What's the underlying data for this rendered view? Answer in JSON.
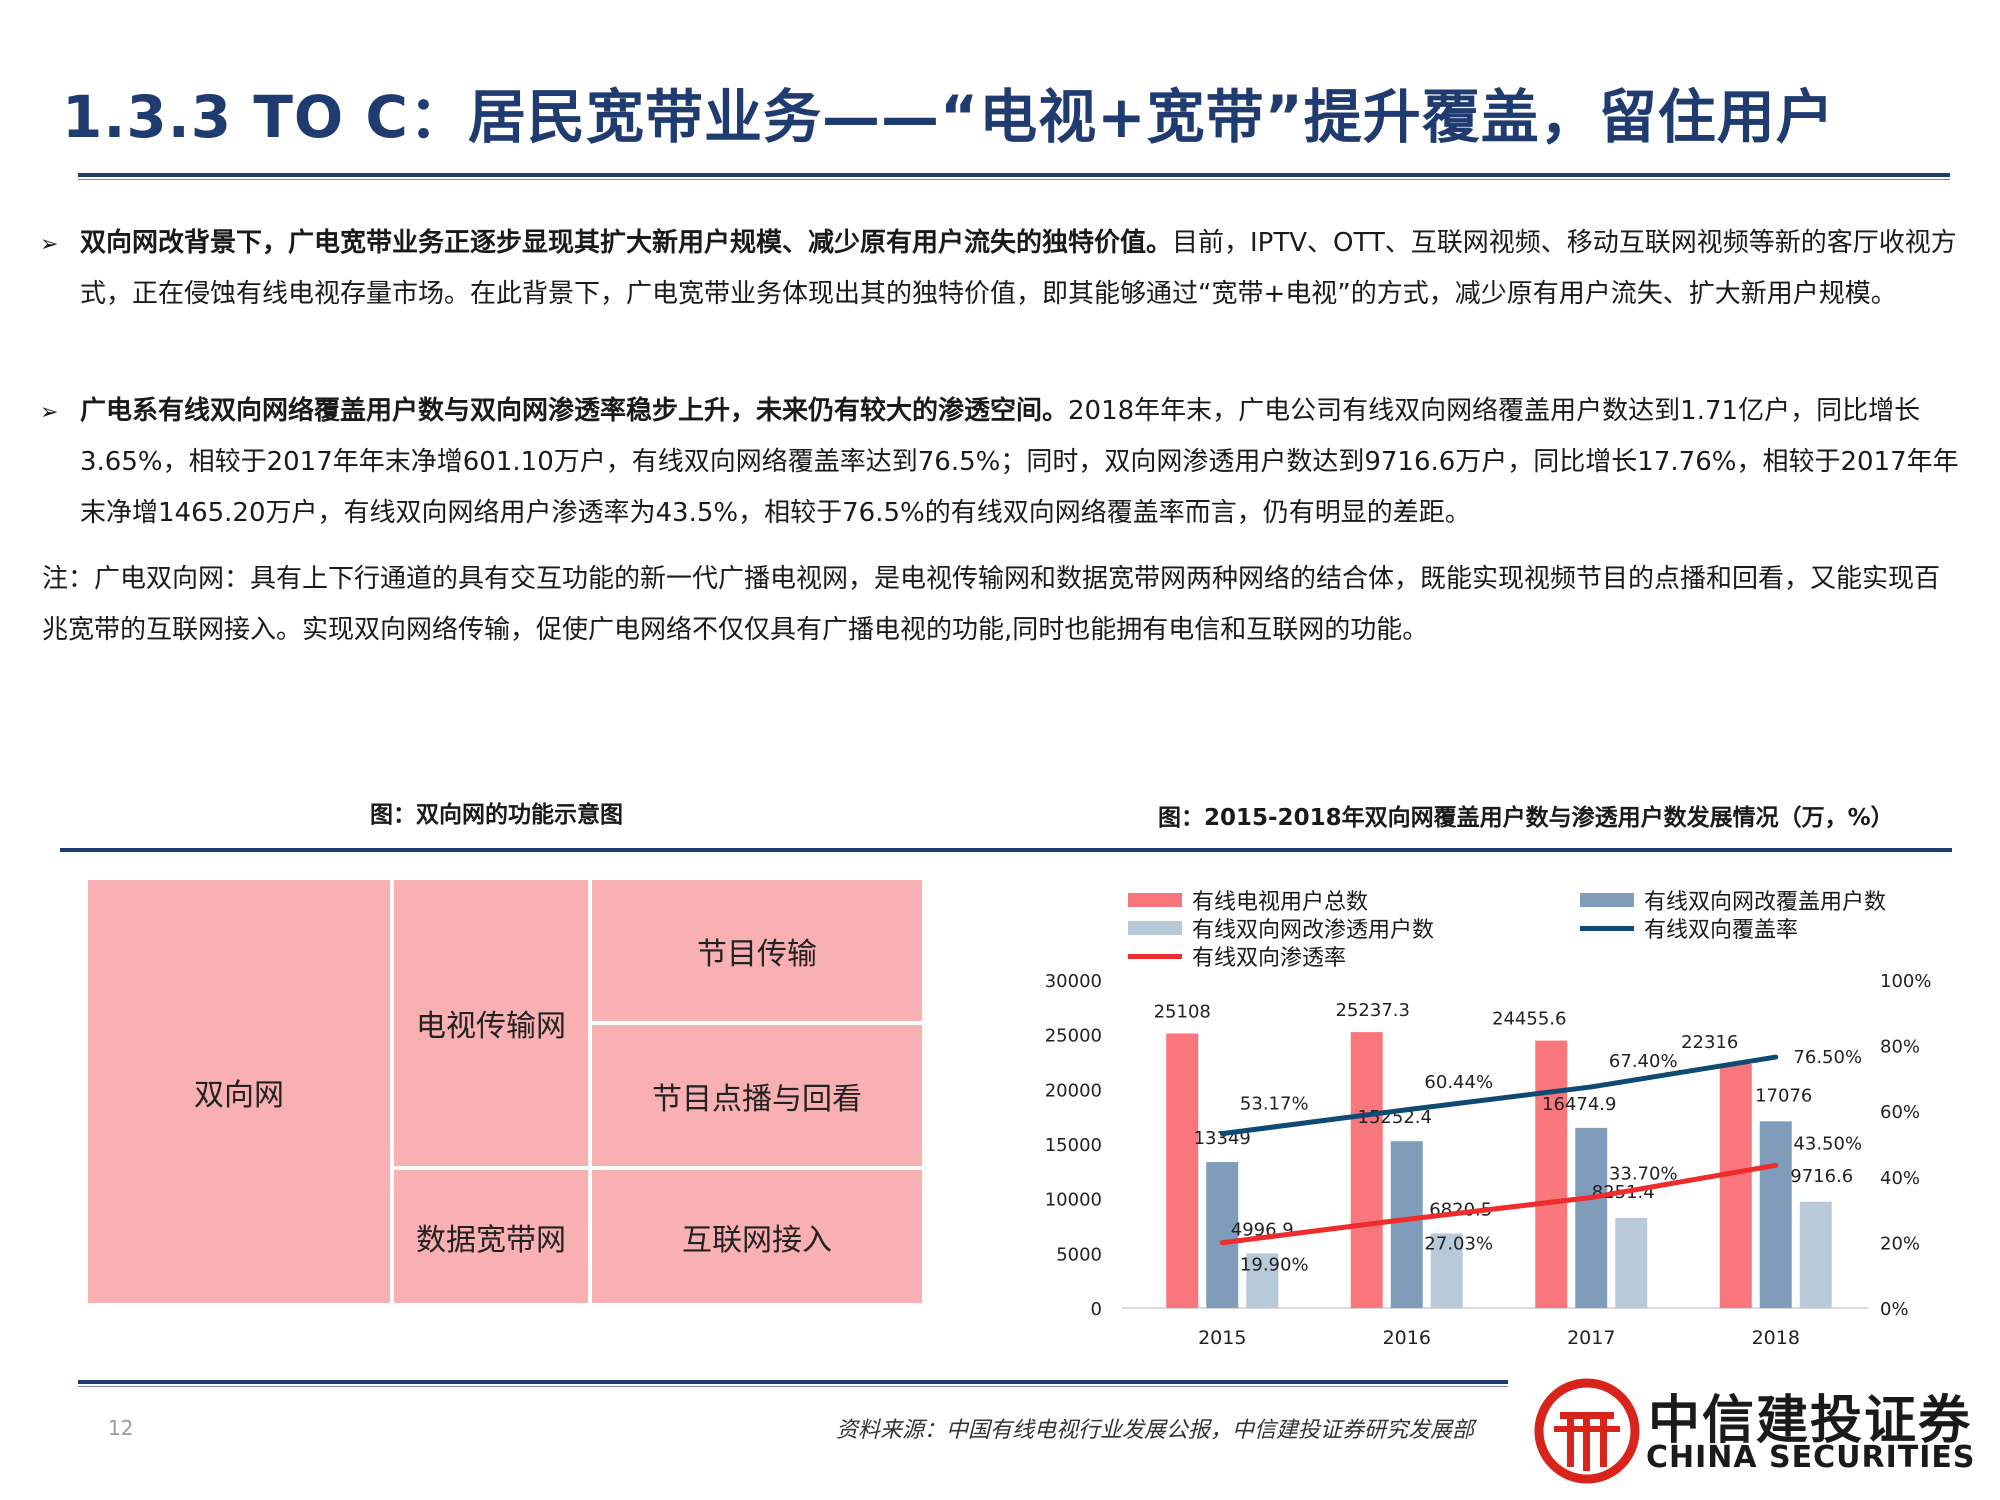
{
  "header": {
    "title": "1.3.3 TO C：居民宽带业务——“电视+宽带”提升覆盖，留住用户"
  },
  "bullets": [
    {
      "marker": "➢",
      "lead": "双向网改背景下，广电宽带业务正逐步显现其扩大新用户规模、减少原有用户流失的独特价值。",
      "body": "目前，IPTV、OTT、互联网视频、移动互联网视频等新的客厅收视方式，正在侵蚀有线电视存量市场。在此背景下，广电宽带业务体现出其的独特价值，即其能够通过“宽带+电视”的方式，减少原有用户流失、扩大新用户规模。"
    },
    {
      "marker": "➢",
      "lead": "广电系有线双向网络覆盖用户数与双向网渗透率稳步上升，未来仍有较大的渗透空间。",
      "body": "2018年年末，广电公司有线双向网络覆盖用户数达到1.71亿户，同比增长3.65%，相较于2017年年末净增601.10万户，有线双向网络覆盖率达到76.5%；同时，双向网渗透用户数达到9716.6万户，同比增长17.76%，相较于2017年年末净增1465.20万户，有线双向网络用户渗透率为43.5%，相较于76.5%的有线双向网络覆盖率而言，仍有明显的差距。"
    }
  ],
  "note": "注：广电双向网：具有上下行通道的具有交互功能的新一代广播电视网，是电视传输网和数据宽带网两种网络的结合体，既能实现视频节目的点播和回看，又能实现百兆宽带的互联网接入。实现双向网络传输，促使广电网络不仅仅具有广播电视的功能,同时也能拥有电信和互联网的功能。",
  "diagram": {
    "caption": "图：双向网的功能示意图",
    "root": "双向网",
    "mid_top": "电视传输网",
    "mid_bottom": "数据宽带网",
    "leaf_1": "节目传输",
    "leaf_2": "节目点播与回看",
    "leaf_3": "互联网接入",
    "fill_color": "#f9b0b3"
  },
  "chart_caption": "图：2015-2018年双向网覆盖用户数与渗透用户数发展情况（万，%）",
  "chart_data": {
    "type": "bar",
    "categories": [
      "2015",
      "2016",
      "2017",
      "2018"
    ],
    "series": [
      {
        "name": "有线电视用户总数",
        "kind": "bar",
        "axis": "left",
        "color": "#f9767d",
        "values": [
          25108,
          25237.3,
          24455.6,
          22316
        ]
      },
      {
        "name": "有线双向网改覆盖用户数",
        "kind": "bar",
        "axis": "left",
        "color": "#7f9dbb",
        "values": [
          13349,
          15252.4,
          16474.9,
          17076
        ]
      },
      {
        "name": "有线双向网改渗透用户数",
        "kind": "bar",
        "axis": "left",
        "color": "#b8cad9",
        "values": [
          4996.9,
          6820.5,
          8251.4,
          9716.6
        ]
      },
      {
        "name": "有线双向覆盖率",
        "kind": "line",
        "axis": "right",
        "color": "#0f4a72",
        "values": [
          53.17,
          60.44,
          67.4,
          76.5
        ],
        "labels": [
          "53.17%",
          "60.44%",
          "67.40%",
          "76.50%"
        ]
      },
      {
        "name": "有线双向渗透率",
        "kind": "line",
        "axis": "right",
        "color": "#ee2c2c",
        "values": [
          19.9,
          27.03,
          33.7,
          43.5
        ],
        "labels": [
          "19.90%",
          "27.03%",
          "33.70%",
          "43.50%"
        ]
      }
    ],
    "bar_labels": [
      [
        "25108",
        "25237.3",
        "24455.6",
        "22316"
      ],
      [
        "13349",
        "15252.4",
        "16474.9",
        "17076"
      ],
      [
        "4996.9",
        "6820.5",
        "8251.4",
        "9716.6"
      ]
    ],
    "ylim_left": [
      0,
      30000
    ],
    "yticks_left": [
      "0",
      "5000",
      "10000",
      "15000",
      "20000",
      "25000",
      "30000"
    ],
    "ylim_right": [
      0,
      100
    ],
    "yticks_right": [
      "0%",
      "20%",
      "40%",
      "60%",
      "80%",
      "100%"
    ],
    "grid": false,
    "legend_position": "top"
  },
  "footer": {
    "page_number": "12",
    "source": "资料来源：中国有线电视行业发展公报，中信建投证券研究发展部",
    "logo_cn": "中信建投证券",
    "logo_en": "CHINA SECURITIES",
    "logo_color": "#d9241c"
  }
}
